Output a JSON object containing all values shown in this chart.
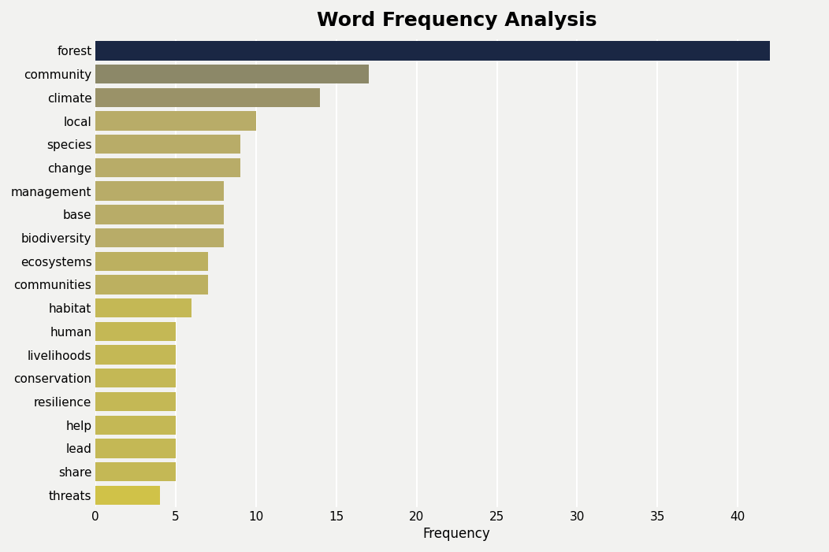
{
  "categories": [
    "forest",
    "community",
    "climate",
    "local",
    "species",
    "change",
    "management",
    "base",
    "biodiversity",
    "ecosystems",
    "communities",
    "habitat",
    "human",
    "livelihoods",
    "conservation",
    "resilience",
    "help",
    "lead",
    "share",
    "threats"
  ],
  "values": [
    42,
    17,
    14,
    10,
    9,
    9,
    8,
    8,
    8,
    7,
    7,
    6,
    5,
    5,
    5,
    5,
    5,
    5,
    5,
    4
  ],
  "bar_colors": [
    "#1a2744",
    "#8c8868",
    "#9a9268",
    "#b8ac68",
    "#b8ac68",
    "#b8ac68",
    "#b8ac68",
    "#b8ac68",
    "#b8ac68",
    "#bcb060",
    "#bcb060",
    "#c4b855",
    "#c4b855",
    "#c4b855",
    "#c4b855",
    "#c4b855",
    "#c4b855",
    "#c4b855",
    "#c4b855",
    "#d0c248"
  ],
  "title": "Word Frequency Analysis",
  "xlabel": "Frequency",
  "xlim": [
    0,
    45
  ],
  "xticks": [
    0,
    5,
    10,
    15,
    20,
    25,
    30,
    35,
    40
  ],
  "title_fontsize": 18,
  "label_fontsize": 12,
  "tick_fontsize": 11,
  "background_color": "#f2f2f0",
  "plot_background": "#f2f2f0",
  "grid_color": "#ffffff",
  "bar_height": 0.82
}
